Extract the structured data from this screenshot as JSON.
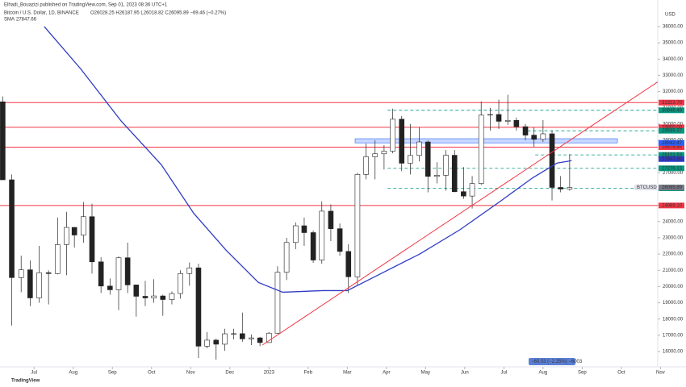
{
  "header": {
    "published": "Elhadi_Bouazizi published on TradingView.com, Sep 01, 2023 08:36 UTC+1",
    "symbol": "Bitcoin / U.S. Dollar, 1D, BINANCE",
    "ohlc": "O26028.25 H26187.95 L26018.82 C26095.89 −69.46 (−0.27%)",
    "sma_name": "SMA",
    "sma_value": "27847.66"
  },
  "footer": {
    "logo": "TradingView"
  },
  "chart_data": {
    "type": "candlestick",
    "currency": "USD",
    "ticker": "BTCUSD",
    "measure_badge": "−60.03 (−2.25%) −6003",
    "up_color": "#ffffff",
    "down_color": "#222222",
    "sma_color": "#2f3bc4",
    "trend_color": "#f23645",
    "xlim": [
      -0.87,
      15.93
    ],
    "ylim": [
      15057,
      37637
    ],
    "xticks": [
      {
        "value": 0,
        "label": "Jul"
      },
      {
        "value": 1,
        "label": "Aug"
      },
      {
        "value": 2,
        "label": "Sep"
      },
      {
        "value": 3,
        "label": "Oct"
      },
      {
        "value": 4,
        "label": "Nov"
      },
      {
        "value": 5,
        "label": "Dec"
      },
      {
        "value": 6,
        "label": "2023"
      },
      {
        "value": 7,
        "label": "Feb"
      },
      {
        "value": 8,
        "label": "Mar"
      },
      {
        "value": 9,
        "label": "Apr"
      },
      {
        "value": 10,
        "label": "May"
      },
      {
        "value": 11,
        "label": "Jun"
      },
      {
        "value": 12,
        "label": "Jul"
      },
      {
        "value": 13,
        "label": "Aug"
      },
      {
        "value": 14,
        "label": "Sep"
      },
      {
        "value": 15,
        "label": "Oct"
      },
      {
        "value": 16,
        "label": "Nov"
      }
    ],
    "yticks": [
      {
        "value": 16000,
        "label": "16000.00"
      },
      {
        "value": 17000,
        "label": "17000.00"
      },
      {
        "value": 18000,
        "label": "18000.00"
      },
      {
        "value": 19000,
        "label": "19000.00"
      },
      {
        "value": 20000,
        "label": "20000.00"
      },
      {
        "value": 21000,
        "label": "21000.00"
      },
      {
        "value": 22000,
        "label": "22000.00"
      },
      {
        "value": 23000,
        "label": "23000.00"
      },
      {
        "value": 24000,
        "label": "24000.00"
      },
      {
        "value": 25000,
        "label": "25000.00"
      },
      {
        "value": 26000,
        "label": "26000.00"
      },
      {
        "value": 27000,
        "label": "27000.00"
      },
      {
        "value": 28000,
        "label": "28000.00"
      },
      {
        "value": 29000,
        "label": "29000.00"
      },
      {
        "value": 30000,
        "label": "30000.00"
      },
      {
        "value": 31000,
        "label": "31000.00"
      },
      {
        "value": 32000,
        "label": "32000.00"
      },
      {
        "value": 33000,
        "label": "33000.00"
      },
      {
        "value": 34000,
        "label": "34000.00"
      },
      {
        "value": 35000,
        "label": "35000.00"
      },
      {
        "value": 36000,
        "label": "36000.00"
      }
    ],
    "candles": {
      "x": [
        -0.8,
        -0.57,
        -0.33,
        -0.1,
        0.13,
        0.37,
        0.6,
        0.83,
        1.03,
        1.26,
        1.48,
        1.71,
        1.94,
        2.16,
        2.39,
        2.61,
        2.84,
        3.06,
        3.29,
        3.52,
        3.74,
        3.97,
        4.2,
        4.42,
        4.65,
        4.87,
        5.1,
        5.32,
        5.55,
        5.77,
        6.0,
        6.22,
        6.45,
        6.68,
        6.9,
        7.13,
        7.35,
        7.58,
        7.81,
        8.03,
        8.26,
        8.48,
        8.71,
        8.94,
        9.16,
        9.39,
        9.61,
        9.84,
        10.06,
        10.29,
        10.52,
        10.74,
        10.97,
        11.19,
        11.42,
        11.65,
        11.87,
        12.1,
        12.32,
        12.55,
        12.77,
        13.0,
        13.23,
        13.45,
        13.68
      ],
      "open": [
        31370,
        26570,
        20550,
        21030,
        19300,
        20850,
        20800,
        22580,
        23640,
        23170,
        24300,
        21520,
        20030,
        19800,
        21770,
        20100,
        19400,
        19300,
        19420,
        19200,
        19570,
        20800,
        21150,
        16330,
        16700,
        16450,
        17090,
        17100,
        16780,
        16840,
        16550,
        17130,
        20880,
        22710,
        23740,
        23320,
        21630,
        24640,
        23560,
        22160,
        20600,
        26900,
        27990,
        28170,
        28330,
        30300,
        27590,
        28070,
        28900,
        26780,
        26850,
        28080,
        25840,
        25570,
        26340,
        30550,
        30590,
        30170,
        30230,
        29840,
        29320,
        29060,
        29400,
        26100,
        26000
      ],
      "high": [
        31700,
        26900,
        21900,
        21600,
        22500,
        21000,
        24250,
        24600,
        23650,
        25200,
        25100,
        21800,
        20500,
        21850,
        22700,
        19700,
        20350,
        20450,
        19500,
        19700,
        21000,
        21480,
        21400,
        17200,
        16800,
        17400,
        17400,
        18400,
        17050,
        16900,
        17200,
        21250,
        23000,
        23950,
        24250,
        23450,
        25250,
        25050,
        23880,
        22600,
        27000,
        28800,
        29000,
        28700,
        30950,
        30500,
        30000,
        29800,
        29000,
        27650,
        28400,
        28400,
        27350,
        26800,
        31400,
        31000,
        31500,
        31800,
        30400,
        30000,
        29800,
        30250,
        29600,
        26800,
        28150
      ],
      "low": [
        26560,
        17600,
        19650,
        18800,
        19000,
        18900,
        20750,
        20700,
        22400,
        22700,
        20800,
        19600,
        19500,
        18550,
        19600,
        18150,
        18800,
        19000,
        18200,
        18900,
        19250,
        20050,
        15600,
        16200,
        15500,
        16050,
        16750,
        16600,
        16400,
        16330,
        16550,
        17100,
        20400,
        22300,
        22500,
        21450,
        21400,
        22800,
        21900,
        19600,
        20100,
        26600,
        26600,
        27200,
        28200,
        27100,
        26900,
        27700,
        25800,
        26350,
        25900,
        25800,
        25400,
        24800,
        26250,
        29600,
        29700,
        29950,
        29600,
        29000,
        28600,
        28900,
        25300,
        25800,
        25900
      ],
      "close": [
        26570,
        20550,
        21030,
        19300,
        20850,
        20800,
        22580,
        23640,
        23170,
        24300,
        21520,
        20030,
        19800,
        21770,
        20100,
        19400,
        19300,
        19420,
        19200,
        19570,
        20800,
        21150,
        16330,
        16700,
        16450,
        17090,
        17100,
        16780,
        16840,
        16550,
        17130,
        20880,
        22710,
        23740,
        23320,
        21630,
        24640,
        23560,
        22160,
        20600,
        26900,
        27990,
        28170,
        28330,
        30300,
        27590,
        28070,
        28900,
        26780,
        26850,
        28080,
        25840,
        25570,
        26340,
        30550,
        30590,
        30170,
        30230,
        29840,
        29320,
        29060,
        29400,
        26100,
        26000,
        26095.89
      ]
    },
    "sma": {
      "x": [
        0.26,
        1.19,
        2.22,
        3.25,
        4.08,
        4.9,
        5.73,
        6.35,
        7.38,
        8.0,
        8.82,
        9.85,
        10.88,
        11.91,
        12.74,
        13.36,
        13.73
      ],
      "values": [
        36000,
        33400,
        30200,
        27500,
        24500,
        22250,
        20250,
        19650,
        19750,
        19750,
        20750,
        22000,
        23500,
        25250,
        26700,
        27600,
        27750
      ]
    },
    "trendline": {
      "x": [
        5.83,
        15.93
      ],
      "values": [
        16397,
        32600
      ]
    },
    "zone": {
      "x": [
        8.2,
        14.9
      ],
      "values": [
        28842.47,
        29100
      ]
    },
    "levels": [
      {
        "value": 31323.7,
        "label": "31323.70",
        "color": "#f23645",
        "dashed": false,
        "from": -0.87
      },
      {
        "value": 30848.48,
        "label": "30848.48",
        "color": "#089981",
        "dashed": true,
        "from": 9.03
      },
      {
        "value": 29800,
        "label": "29800.00",
        "color": "#f23645",
        "dashed": false,
        "from": -0.87
      },
      {
        "value": 29589.37,
        "label": "29589.37",
        "color": "#089981",
        "dashed": true,
        "from": 12.6
      },
      {
        "value": 28578.85,
        "label": "28578.85",
        "color": "#f23645",
        "dashed": false,
        "from": -0.87
      },
      {
        "value": 28101.53,
        "label": "28101.53",
        "color": "#089981",
        "dashed": true,
        "from": 12.8
      },
      {
        "value": 27276.13,
        "label": "27276.13",
        "color": "#089981",
        "dashed": true,
        "from": 9.03
      },
      {
        "value": 26049.52,
        "label": "26049.52",
        "color": "#089981",
        "dashed": true,
        "from": 9.03
      },
      {
        "value": 24989.1,
        "label": "24989.10",
        "color": "#f23645",
        "dashed": false,
        "from": -0.87
      }
    ],
    "price_labels": [
      {
        "value": 28842.47,
        "label": "28842.47",
        "color": "#2962ff"
      },
      {
        "value": 27847.66,
        "label": "27847.66",
        "color": "#2f3bc4"
      },
      {
        "value": 26095.89,
        "label": "26095.89",
        "color": "#787b86"
      }
    ]
  }
}
